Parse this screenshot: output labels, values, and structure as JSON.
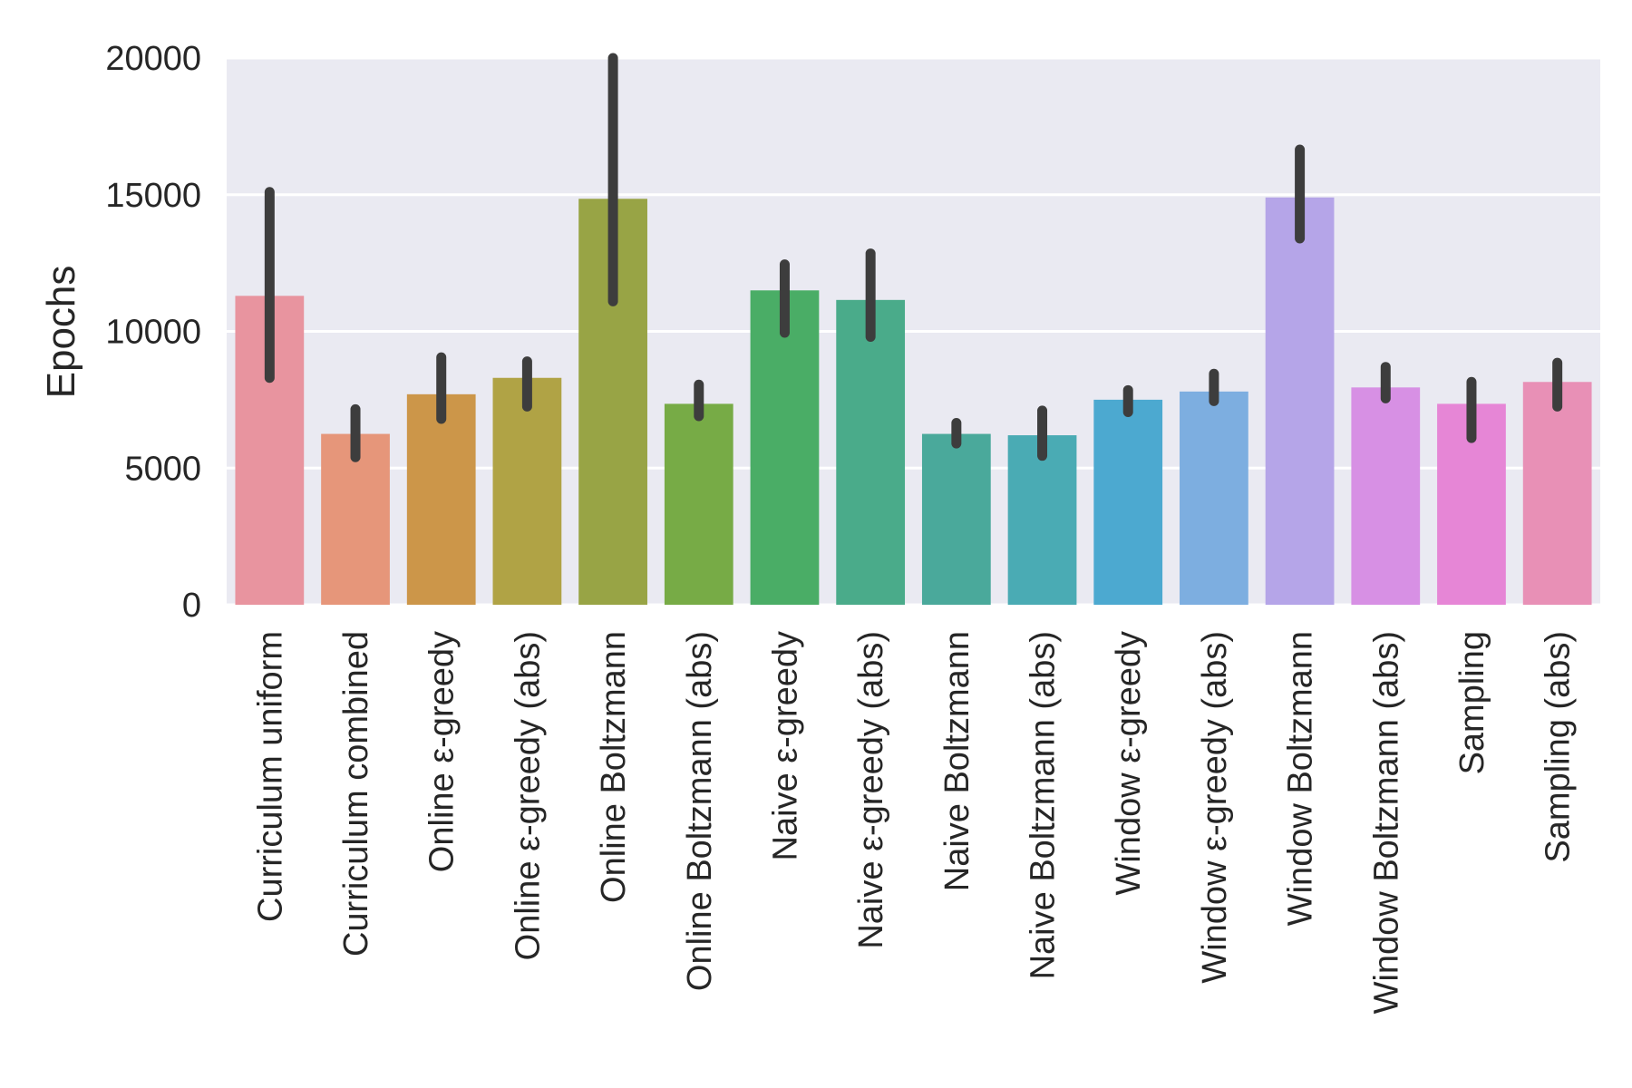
{
  "chart_data": {
    "type": "bar",
    "title": "",
    "xlabel": "",
    "ylabel": "Epochs",
    "ylim": [
      0,
      20000
    ],
    "yticks": [
      0,
      5000,
      10000,
      15000,
      20000
    ],
    "grid": true,
    "categories": [
      "Curriculum uniform",
      "Curriculum combined",
      "Online ε-greedy",
      "Online ε-greedy (abs)",
      "Online Boltzmann",
      "Online Boltzmann (abs)",
      "Naive ε-greedy",
      "Naive ε-greedy (abs)",
      "Naive Boltzmann",
      "Naive Boltzmann (abs)",
      "Window ε-greedy",
      "Window ε-greedy (abs)",
      "Window Boltzmann",
      "Window Boltzmann (abs)",
      "Sampling",
      "Sampling (abs)"
    ],
    "values": [
      11300,
      6250,
      7700,
      8300,
      14850,
      7350,
      11500,
      11150,
      6250,
      6200,
      7500,
      7800,
      14900,
      7950,
      7350,
      8150
    ],
    "error_low": [
      8300,
      5400,
      6800,
      7250,
      11100,
      6900,
      9950,
      9800,
      5900,
      5450,
      7050,
      7450,
      13400,
      7550,
      6100,
      7250
    ],
    "error_high": [
      15100,
      7150,
      9050,
      8900,
      20000,
      8050,
      12450,
      12850,
      6650,
      7100,
      7850,
      8450,
      16650,
      8700,
      8150,
      8850
    ],
    "colors": [
      "#e8949f",
      "#e6967a",
      "#cc9649",
      "#b0a345",
      "#98a445",
      "#77ab46",
      "#4aad66",
      "#4aab8a",
      "#4aa99b",
      "#4aabb4",
      "#4ca9d0",
      "#7daee0",
      "#b5a5e8",
      "#d790e4",
      "#e686d6",
      "#e890b6"
    ]
  }
}
